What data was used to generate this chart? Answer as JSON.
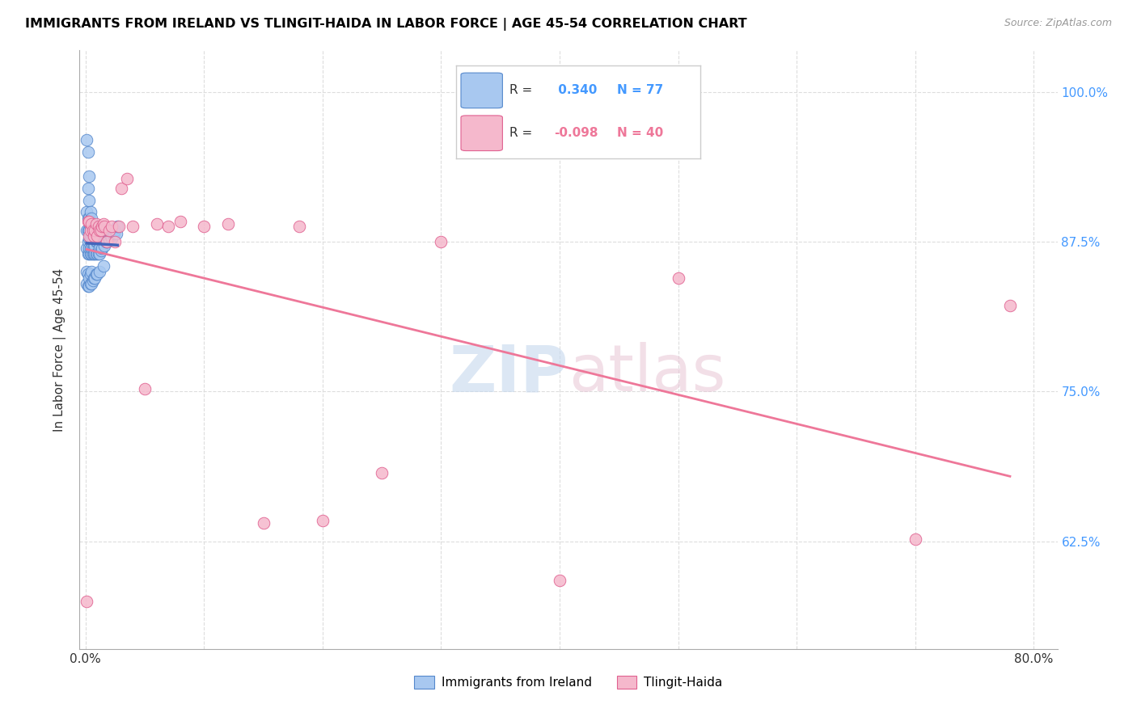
{
  "title": "IMMIGRANTS FROM IRELAND VS TLINGIT-HAIDA IN LABOR FORCE | AGE 45-54 CORRELATION CHART",
  "source": "Source: ZipAtlas.com",
  "ylabel": "In Labor Force | Age 45-54",
  "xlim": [
    -0.005,
    0.82
  ],
  "ylim": [
    0.535,
    1.035
  ],
  "xticks": [
    0.0,
    0.1,
    0.2,
    0.3,
    0.4,
    0.5,
    0.6,
    0.7,
    0.8
  ],
  "xlabels": [
    "0.0%",
    "",
    "",
    "",
    "",
    "",
    "",
    "",
    "80.0%"
  ],
  "yticks": [
    0.625,
    0.75,
    0.875,
    1.0
  ],
  "ylabels": [
    "62.5%",
    "75.0%",
    "87.5%",
    "100.0%"
  ],
  "legend_r_blue": " 0.340",
  "legend_n_blue": "77",
  "legend_r_pink": "-0.098",
  "legend_n_pink": "40",
  "blue_color": "#a8c8f0",
  "blue_edge": "#5588cc",
  "pink_color": "#f5b8cc",
  "pink_edge": "#e06090",
  "trendline_blue": "#4466bb",
  "trendline_pink": "#ee7799",
  "blue_scatter_x": [
    0.001,
    0.001,
    0.001,
    0.001,
    0.002,
    0.002,
    0.002,
    0.002,
    0.002,
    0.002,
    0.003,
    0.003,
    0.003,
    0.003,
    0.003,
    0.003,
    0.003,
    0.004,
    0.004,
    0.004,
    0.004,
    0.004,
    0.005,
    0.005,
    0.005,
    0.005,
    0.005,
    0.006,
    0.006,
    0.006,
    0.006,
    0.007,
    0.007,
    0.007,
    0.008,
    0.008,
    0.008,
    0.009,
    0.009,
    0.01,
    0.01,
    0.011,
    0.011,
    0.012,
    0.012,
    0.013,
    0.014,
    0.015,
    0.016,
    0.017,
    0.018,
    0.019,
    0.02,
    0.021,
    0.022,
    0.023,
    0.024,
    0.025,
    0.026,
    0.027,
    0.001,
    0.001,
    0.002,
    0.002,
    0.003,
    0.003,
    0.004,
    0.004,
    0.005,
    0.005,
    0.006,
    0.007,
    0.008,
    0.009,
    0.01,
    0.012,
    0.015
  ],
  "blue_scatter_y": [
    0.87,
    0.885,
    0.9,
    0.96,
    0.865,
    0.875,
    0.885,
    0.895,
    0.92,
    0.95,
    0.865,
    0.87,
    0.878,
    0.885,
    0.895,
    0.91,
    0.93,
    0.865,
    0.87,
    0.878,
    0.888,
    0.9,
    0.865,
    0.87,
    0.878,
    0.885,
    0.895,
    0.865,
    0.87,
    0.878,
    0.888,
    0.865,
    0.872,
    0.88,
    0.865,
    0.872,
    0.88,
    0.865,
    0.875,
    0.865,
    0.875,
    0.865,
    0.875,
    0.865,
    0.87,
    0.868,
    0.87,
    0.878,
    0.872,
    0.875,
    0.875,
    0.878,
    0.878,
    0.88,
    0.878,
    0.882,
    0.882,
    0.885,
    0.882,
    0.888,
    0.84,
    0.85,
    0.838,
    0.848,
    0.838,
    0.845,
    0.84,
    0.848,
    0.84,
    0.85,
    0.843,
    0.845,
    0.845,
    0.848,
    0.848,
    0.85,
    0.855
  ],
  "pink_scatter_x": [
    0.001,
    0.002,
    0.003,
    0.003,
    0.004,
    0.005,
    0.006,
    0.007,
    0.008,
    0.009,
    0.01,
    0.011,
    0.012,
    0.013,
    0.014,
    0.015,
    0.016,
    0.018,
    0.02,
    0.022,
    0.025,
    0.028,
    0.03,
    0.035,
    0.04,
    0.05,
    0.06,
    0.07,
    0.08,
    0.1,
    0.12,
    0.15,
    0.18,
    0.2,
    0.25,
    0.3,
    0.4,
    0.5,
    0.7,
    0.78
  ],
  "pink_scatter_y": [
    0.575,
    0.892,
    0.88,
    0.892,
    0.885,
    0.89,
    0.885,
    0.88,
    0.885,
    0.89,
    0.88,
    0.888,
    0.885,
    0.885,
    0.888,
    0.89,
    0.888,
    0.875,
    0.885,
    0.888,
    0.875,
    0.888,
    0.92,
    0.928,
    0.888,
    0.752,
    0.89,
    0.888,
    0.892,
    0.888,
    0.89,
    0.64,
    0.888,
    0.642,
    0.682,
    0.875,
    0.592,
    0.845,
    0.627,
    0.822
  ]
}
